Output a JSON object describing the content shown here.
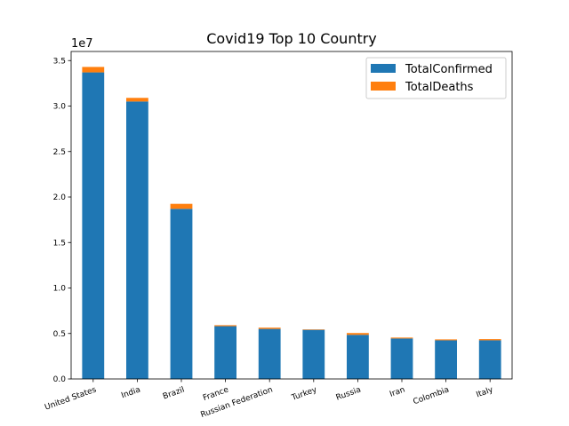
{
  "chart_data": {
    "type": "bar",
    "stacked": true,
    "title": "Covid19 Top 10 Country",
    "y_offset_label": "1e7",
    "y_scale_factor": 10000000,
    "categories": [
      "United States",
      "India",
      "Brazil",
      "France",
      "Russian Federation",
      "Turkey",
      "Russia",
      "Iran",
      "Colombia",
      "Italy"
    ],
    "series": [
      {
        "name": "TotalConfirmed",
        "color": "#1f77b4",
        "values": [
          33700000,
          30500000,
          18700000,
          5800000,
          5500000,
          5400000,
          4850000,
          4450000,
          4250000,
          4250000
        ]
      },
      {
        "name": "TotalDeaths",
        "color": "#ff7f0e",
        "values": [
          600000,
          400000,
          550000,
          110000,
          140000,
          50000,
          200000,
          100000,
          100000,
          130000
        ]
      }
    ],
    "ylim": [
      0,
      36000000
    ],
    "yticks": [
      0,
      5000000,
      10000000,
      15000000,
      20000000,
      25000000,
      30000000,
      35000000
    ],
    "ytick_labels": [
      "0.0",
      "0.5",
      "1.0",
      "1.5",
      "2.0",
      "2.5",
      "3.0",
      "3.5"
    ],
    "xlabel": "",
    "ylabel": "",
    "legend_position": "top-right",
    "grid": false
  }
}
